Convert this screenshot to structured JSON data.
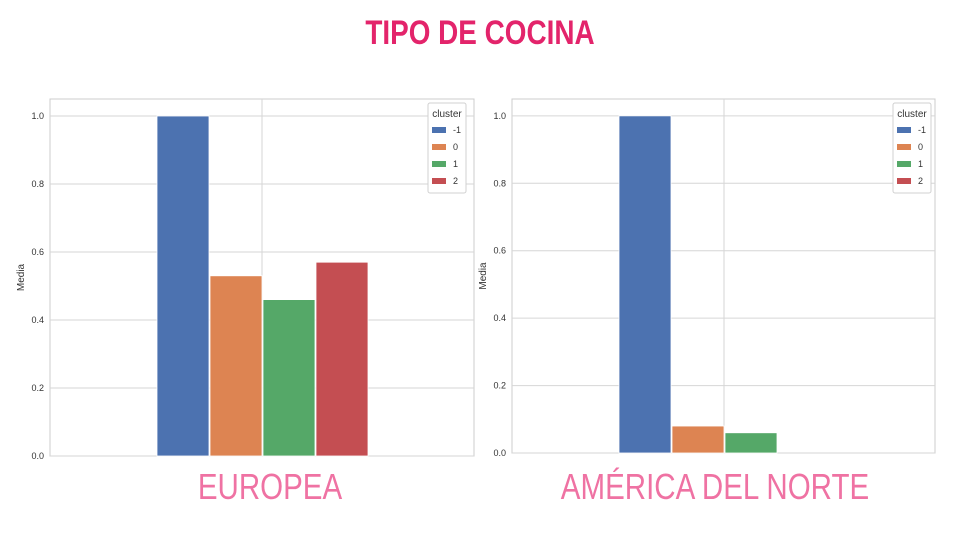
{
  "title": "TIPO DE COCINA",
  "colors": {
    "title": "#e3246b",
    "caption": "#ef72a3",
    "series": [
      "#4c72b0",
      "#dd8452",
      "#55a868",
      "#c44e52"
    ]
  },
  "chart_data": [
    {
      "type": "bar",
      "caption": "EUROPEA",
      "ylabel": "Media",
      "ylim": [
        0,
        1.05
      ],
      "yticks": [
        "0.0",
        "0.2",
        "0.4",
        "0.6",
        "0.8",
        "1.0"
      ],
      "grid": true,
      "legend": {
        "title": "cluster",
        "placement": "top-right"
      },
      "series": [
        {
          "name": "-1",
          "value": 1.0
        },
        {
          "name": "0",
          "value": 0.53
        },
        {
          "name": "1",
          "value": 0.46
        },
        {
          "name": "2",
          "value": 0.57
        }
      ]
    },
    {
      "type": "bar",
      "caption": "AMÉRICA DEL NORTE",
      "ylabel": "Media",
      "ylim": [
        0,
        1.05
      ],
      "yticks": [
        "0.0",
        "0.2",
        "0.4",
        "0.6",
        "0.8",
        "1.0"
      ],
      "grid": true,
      "legend": {
        "title": "cluster",
        "placement": "top-right"
      },
      "series": [
        {
          "name": "-1",
          "value": 1.0
        },
        {
          "name": "0",
          "value": 0.08
        },
        {
          "name": "1",
          "value": 0.06
        },
        {
          "name": "2",
          "value": 0.0
        }
      ]
    }
  ]
}
